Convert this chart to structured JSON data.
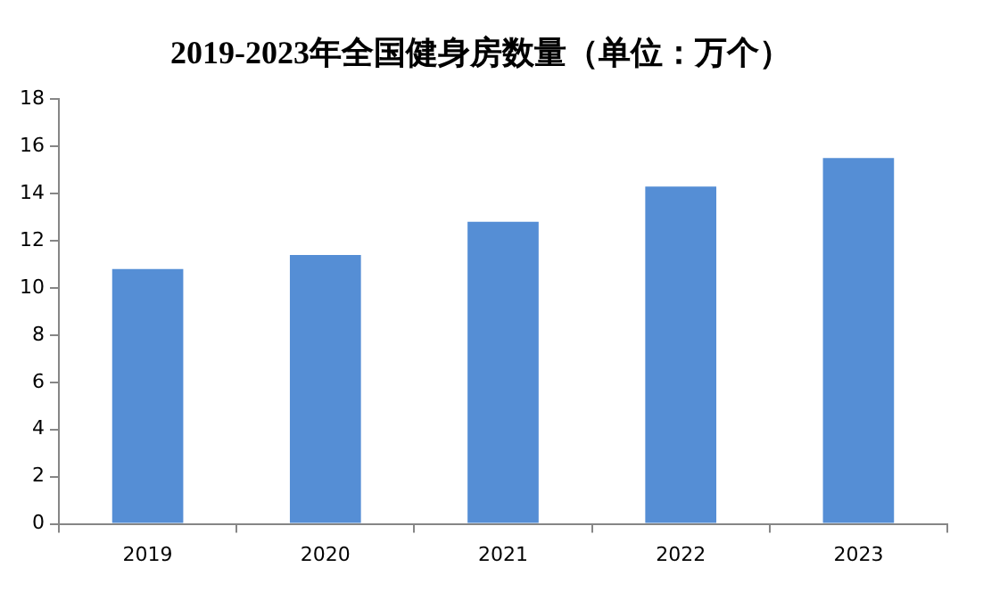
{
  "chart_data": {
    "type": "bar",
    "title": "2019-2023年全国健身房数量（单位：万个）",
    "categories": [
      "2019",
      "2020",
      "2021",
      "2022",
      "2023"
    ],
    "values": [
      10.8,
      11.4,
      12.8,
      14.3,
      15.5
    ],
    "color": "#558ed5",
    "ylim": [
      0,
      18
    ],
    "yticks": [
      0,
      2,
      4,
      6,
      8,
      10,
      12,
      14,
      16,
      18
    ],
    "grid": false,
    "legend": false
  }
}
